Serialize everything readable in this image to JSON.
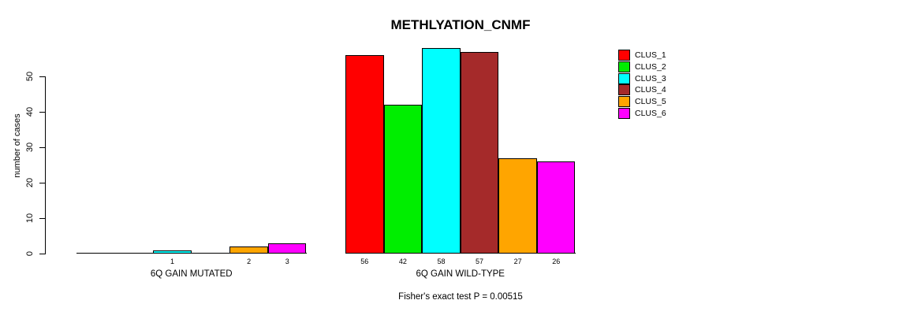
{
  "chart_data": {
    "type": "bar",
    "title": "METHLYATION_CNMF",
    "ylabel": "number of cases",
    "xlabel": "",
    "yticks": [
      0,
      10,
      20,
      30,
      40,
      50
    ],
    "ylim": [
      0,
      58
    ],
    "grid": false,
    "legend_position": "right",
    "legend": [
      {
        "label": "CLUS_1",
        "color": "#FF0000"
      },
      {
        "label": "CLUS_2",
        "color": "#00EE00"
      },
      {
        "label": "CLUS_3",
        "color": "#00FFFF"
      },
      {
        "label": "CLUS_4",
        "color": "#A52A2A"
      },
      {
        "label": "CLUS_5",
        "color": "#FFA500"
      },
      {
        "label": "CLUS_6",
        "color": "#FF00FF"
      }
    ],
    "groups": [
      {
        "label": "6Q GAIN MUTATED",
        "values": [
          0,
          0,
          1,
          0,
          2,
          3
        ]
      },
      {
        "label": "6Q GAIN WILD-TYPE",
        "values": [
          56,
          42,
          58,
          57,
          27,
          26
        ]
      }
    ],
    "annotation": "Fisher's exact test P = 0.00515"
  }
}
